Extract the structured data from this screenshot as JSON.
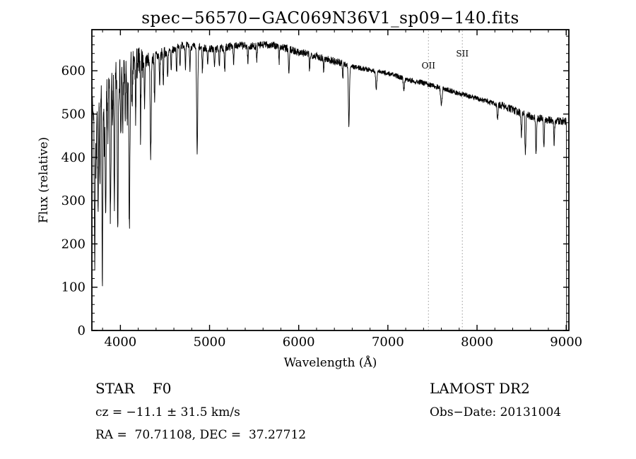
{
  "header": {
    "title": "spec−56570−GAC069N36V1_sp09−140.fits"
  },
  "axes": {
    "x_label": "Wavelength (Å)",
    "y_label": "Flux (relative)"
  },
  "footer": {
    "class_label": "STAR    F0",
    "survey": "LAMOST DR2",
    "cz": "cz = −11.1 ± 31.5 km/s",
    "obs_date": "Obs−Date: 20131004",
    "radec": "RA =  70.71108, DEC =  37.27712"
  },
  "chart_data": {
    "type": "line",
    "title": "spec−56570−GAC069N36V1_sp09−140.fits",
    "xlabel": "Wavelength (Å)",
    "ylabel": "Flux (relative)",
    "xlim": [
      3680,
      9030
    ],
    "ylim": [
      0,
      695
    ],
    "xticks": [
      4000,
      5000,
      6000,
      7000,
      8000,
      9000
    ],
    "yticks": [
      0,
      100,
      200,
      300,
      400,
      500,
      600
    ],
    "xminor": 200,
    "yminor": 20,
    "grid": false,
    "legend": "none",
    "colors": {
      "line": "#000000",
      "frame": "#000000",
      "marker_line": "#999999",
      "background": "#ffffff"
    },
    "marker_lines": [
      {
        "x": 7455,
        "label": "OII",
        "label_y": 97
      },
      {
        "x": 7835,
        "label": "SII",
        "label_y": 80
      }
    ],
    "continuum": [
      [
        3682,
        495
      ],
      [
        3700,
        515
      ],
      [
        3740,
        530
      ],
      [
        3780,
        545
      ],
      [
        3820,
        556
      ],
      [
        3860,
        566
      ],
      [
        3900,
        574
      ],
      [
        3940,
        581
      ],
      [
        3980,
        588
      ],
      [
        4020,
        594
      ],
      [
        4060,
        601
      ],
      [
        4100,
        607
      ],
      [
        4150,
        612
      ],
      [
        4200,
        617
      ],
      [
        4250,
        621
      ],
      [
        4300,
        625
      ],
      [
        4350,
        629
      ],
      [
        4400,
        633
      ],
      [
        4450,
        637
      ],
      [
        4500,
        641
      ],
      [
        4550,
        645
      ],
      [
        4600,
        649
      ],
      [
        4650,
        655
      ],
      [
        4700,
        659
      ],
      [
        4750,
        658
      ],
      [
        4800,
        656
      ],
      [
        4850,
        655
      ],
      [
        4900,
        653
      ],
      [
        4950,
        652
      ],
      [
        5000,
        651
      ],
      [
        5050,
        650
      ],
      [
        5100,
        651
      ],
      [
        5150,
        653
      ],
      [
        5200,
        655
      ],
      [
        5250,
        658
      ],
      [
        5300,
        660
      ],
      [
        5350,
        659
      ],
      [
        5400,
        657
      ],
      [
        5450,
        656
      ],
      [
        5500,
        657
      ],
      [
        5550,
        658
      ],
      [
        5600,
        660
      ],
      [
        5650,
        660
      ],
      [
        5700,
        659
      ],
      [
        5750,
        657
      ],
      [
        5800,
        655
      ],
      [
        5850,
        652
      ],
      [
        5900,
        649
      ],
      [
        5950,
        646
      ],
      [
        6000,
        643
      ],
      [
        6100,
        639
      ],
      [
        6200,
        634
      ],
      [
        6300,
        628
      ],
      [
        6400,
        622
      ],
      [
        6500,
        616
      ],
      [
        6600,
        610
      ],
      [
        6700,
        606
      ],
      [
        6800,
        602
      ],
      [
        6900,
        598
      ],
      [
        7000,
        594
      ],
      [
        7100,
        588
      ],
      [
        7200,
        582
      ],
      [
        7300,
        576
      ],
      [
        7400,
        572
      ],
      [
        7500,
        566
      ],
      [
        7600,
        560
      ],
      [
        7700,
        554
      ],
      [
        7800,
        548
      ],
      [
        7900,
        542
      ],
      [
        8000,
        536
      ],
      [
        8100,
        530
      ],
      [
        8200,
        524
      ],
      [
        8300,
        518
      ],
      [
        8400,
        510
      ],
      [
        8500,
        502
      ],
      [
        8600,
        495
      ],
      [
        8700,
        490
      ],
      [
        8800,
        487
      ],
      [
        8900,
        485
      ],
      [
        9000,
        483
      ]
    ],
    "absorption_lines": [
      [
        3712,
        360,
        5
      ],
      [
        3727,
        150,
        4
      ],
      [
        3750,
        270,
        5
      ],
      [
        3770,
        190,
        4
      ],
      [
        3798,
        420,
        5
      ],
      [
        3820,
        170,
        4
      ],
      [
        3835,
        330,
        5
      ],
      [
        3860,
        140,
        4
      ],
      [
        3889,
        320,
        5
      ],
      [
        3912,
        120,
        4
      ],
      [
        3933,
        280,
        5
      ],
      [
        3970,
        350,
        5
      ],
      [
        4005,
        150,
        4
      ],
      [
        4026,
        130,
        4
      ],
      [
        4055,
        110,
        4
      ],
      [
        4077,
        140,
        4
      ],
      [
        4101,
        370,
        6
      ],
      [
        4132,
        120,
        4
      ],
      [
        4172,
        120,
        4
      ],
      [
        4226,
        150,
        4
      ],
      [
        4271,
        100,
        4
      ],
      [
        4340,
        225,
        6
      ],
      [
        4383,
        100,
        4
      ],
      [
        4440,
        70,
        4
      ],
      [
        4481,
        70,
        4
      ],
      [
        4530,
        60,
        4
      ],
      [
        4570,
        50,
        4
      ],
      [
        4630,
        55,
        4
      ],
      [
        4668,
        45,
        4
      ],
      [
        4730,
        50,
        4
      ],
      [
        4780,
        55,
        4
      ],
      [
        4861,
        250,
        6
      ],
      [
        4920,
        55,
        4
      ],
      [
        4980,
        40,
        4
      ],
      [
        5055,
        45,
        4
      ],
      [
        5110,
        40,
        4
      ],
      [
        5170,
        55,
        5
      ],
      [
        5270,
        50,
        4
      ],
      [
        5430,
        40,
        4
      ],
      [
        5530,
        35,
        4
      ],
      [
        5780,
        35,
        4
      ],
      [
        5890,
        60,
        5
      ],
      [
        6122,
        40,
        4
      ],
      [
        6280,
        30,
        4
      ],
      [
        6495,
        40,
        4
      ],
      [
        6563,
        140,
        6
      ],
      [
        6870,
        40,
        7
      ],
      [
        7180,
        25,
        7
      ],
      [
        7600,
        35,
        8
      ],
      [
        8230,
        30,
        6
      ],
      [
        8498,
        50,
        5
      ],
      [
        8542,
        90,
        5
      ],
      [
        8662,
        85,
        5
      ],
      [
        8750,
        65,
        5
      ],
      [
        8865,
        55,
        5
      ]
    ],
    "noise": {
      "seed": 7,
      "regions": [
        {
          "to": 4250,
          "amp": 42
        },
        {
          "to": 4500,
          "amp": 16
        },
        {
          "to": 6500,
          "amp": 9
        },
        {
          "to": 8200,
          "amp": 6
        },
        {
          "to": 9010,
          "amp": 9
        }
      ]
    },
    "sample": {
      "start": 3682,
      "end": 9003,
      "step": 2.2
    },
    "drop_x": 9005
  }
}
